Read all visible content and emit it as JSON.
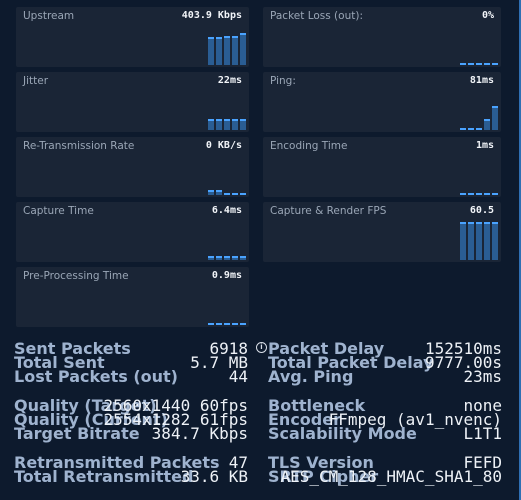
{
  "tiles": [
    {
      "label": "Upstream",
      "value": "403.9 Kbps",
      "bar_levels": [
        0.7,
        0.7,
        0.72,
        0.72,
        0.8
      ]
    },
    {
      "label": "Packet Loss (out):",
      "value": "0%",
      "bar_levels": [
        0,
        0,
        0,
        0,
        0
      ]
    },
    {
      "label": "Jitter",
      "value": "22ms",
      "bar_levels": [
        0.27,
        0.27,
        0.27,
        0.27,
        0.27
      ]
    },
    {
      "label": "Ping:",
      "value": "81ms",
      "bar_levels": [
        0.0,
        0.0,
        0.0,
        0.27,
        0.6
      ]
    },
    {
      "label": "Re-Transmission Rate",
      "value": "0 KB/s",
      "bar_levels": [
        0.12,
        0.12,
        0.0,
        0.0,
        0.0
      ]
    },
    {
      "label": "Encoding Time",
      "value": "1ms",
      "bar_levels": [
        0,
        0,
        0,
        0,
        0
      ]
    },
    {
      "label": "Capture Time",
      "value": "6.4ms",
      "bar_levels": [
        0.1,
        0.1,
        0.1,
        0.1,
        0.1
      ]
    },
    {
      "label": "Capture & Render FPS",
      "value": "60.5",
      "bar_levels": [
        0.95,
        0.95,
        0.95,
        0.95,
        0.95
      ]
    },
    {
      "label": "Pre-Processing Time",
      "value": "0.9ms",
      "bar_levels": [
        0,
        0,
        0,
        0,
        0
      ]
    }
  ],
  "stats_left": [
    {
      "label": "Sent Packets",
      "value": "6918"
    },
    {
      "label": "Total Sent",
      "value": "5.7 MB"
    },
    {
      "label": "Lost Packets (out)",
      "value": "44"
    },
    {
      "label": "Quality (Target)",
      "value": "2560x1440 60fps"
    },
    {
      "label": "Quality (Current)",
      "value": "2554x1282 61fps"
    },
    {
      "label": "Target Bitrate",
      "value": "384.7 Kbps"
    },
    {
      "label": "Retransmitted Packets",
      "value": "47"
    },
    {
      "label": "Total Retransmitted",
      "value": "33.6 KB"
    }
  ],
  "stats_right": [
    {
      "label": "Packet Delay",
      "value": "152510ms"
    },
    {
      "label": "Total Packet Delay",
      "value": "9777.00s"
    },
    {
      "label": "Avg. Ping",
      "value": "23ms"
    },
    {
      "label": "Bottleneck",
      "value": "none"
    },
    {
      "label": "Encoder",
      "value": "FFmpeg (av1_nvenc)"
    },
    {
      "label": "Scalability Mode",
      "value": "L1T1"
    },
    {
      "label": "TLS Version",
      "value": "FEFD"
    },
    {
      "label": "SRTP Cipher",
      "value": "AES_CM_128_HMAC_SHA1_80"
    }
  ],
  "info_icon": "info-icon",
  "colors": {
    "background": "#0d1a2d",
    "tile": "#1a2536",
    "bar": "#2a5d93",
    "bar_top": "#4aa3ff"
  }
}
